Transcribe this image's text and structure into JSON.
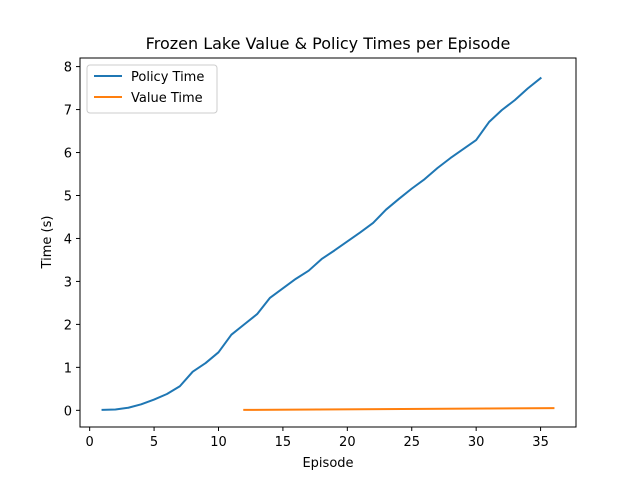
{
  "chart_data": {
    "type": "line",
    "title": "Frozen Lake Value & Policy Times per Episode",
    "xlabel": "Episode",
    "ylabel": "Time (s)",
    "xlim": [
      -0.75,
      37.75
    ],
    "ylim": [
      -0.388,
      8.2
    ],
    "xticks": [
      0,
      5,
      10,
      15,
      20,
      25,
      30,
      35
    ],
    "yticks": [
      0,
      1,
      2,
      3,
      4,
      5,
      6,
      7,
      8
    ],
    "grid": false,
    "legend_position": "upper-left",
    "series": [
      {
        "name": "Policy Time",
        "color": "#1f77b4",
        "x": [
          1,
          2,
          3,
          4,
          5,
          6,
          7,
          8,
          9,
          10,
          11,
          12,
          13,
          14,
          15,
          16,
          17,
          18,
          19,
          20,
          21,
          22,
          23,
          24,
          25,
          26,
          27,
          28,
          29,
          30,
          31,
          32,
          33,
          34,
          35
        ],
        "y": [
          0.01,
          0.02,
          0.06,
          0.14,
          0.25,
          0.38,
          0.56,
          0.9,
          1.1,
          1.35,
          1.76,
          2.0,
          2.24,
          2.62,
          2.84,
          3.06,
          3.25,
          3.52,
          3.72,
          3.93,
          4.14,
          4.36,
          4.67,
          4.92,
          5.16,
          5.38,
          5.64,
          5.87,
          6.08,
          6.29,
          6.71,
          6.99,
          7.22,
          7.49,
          7.73
        ]
      },
      {
        "name": "Value Time",
        "color": "#ff7f0e",
        "x": [
          12,
          36
        ],
        "y": [
          0.01,
          0.05
        ]
      }
    ]
  }
}
